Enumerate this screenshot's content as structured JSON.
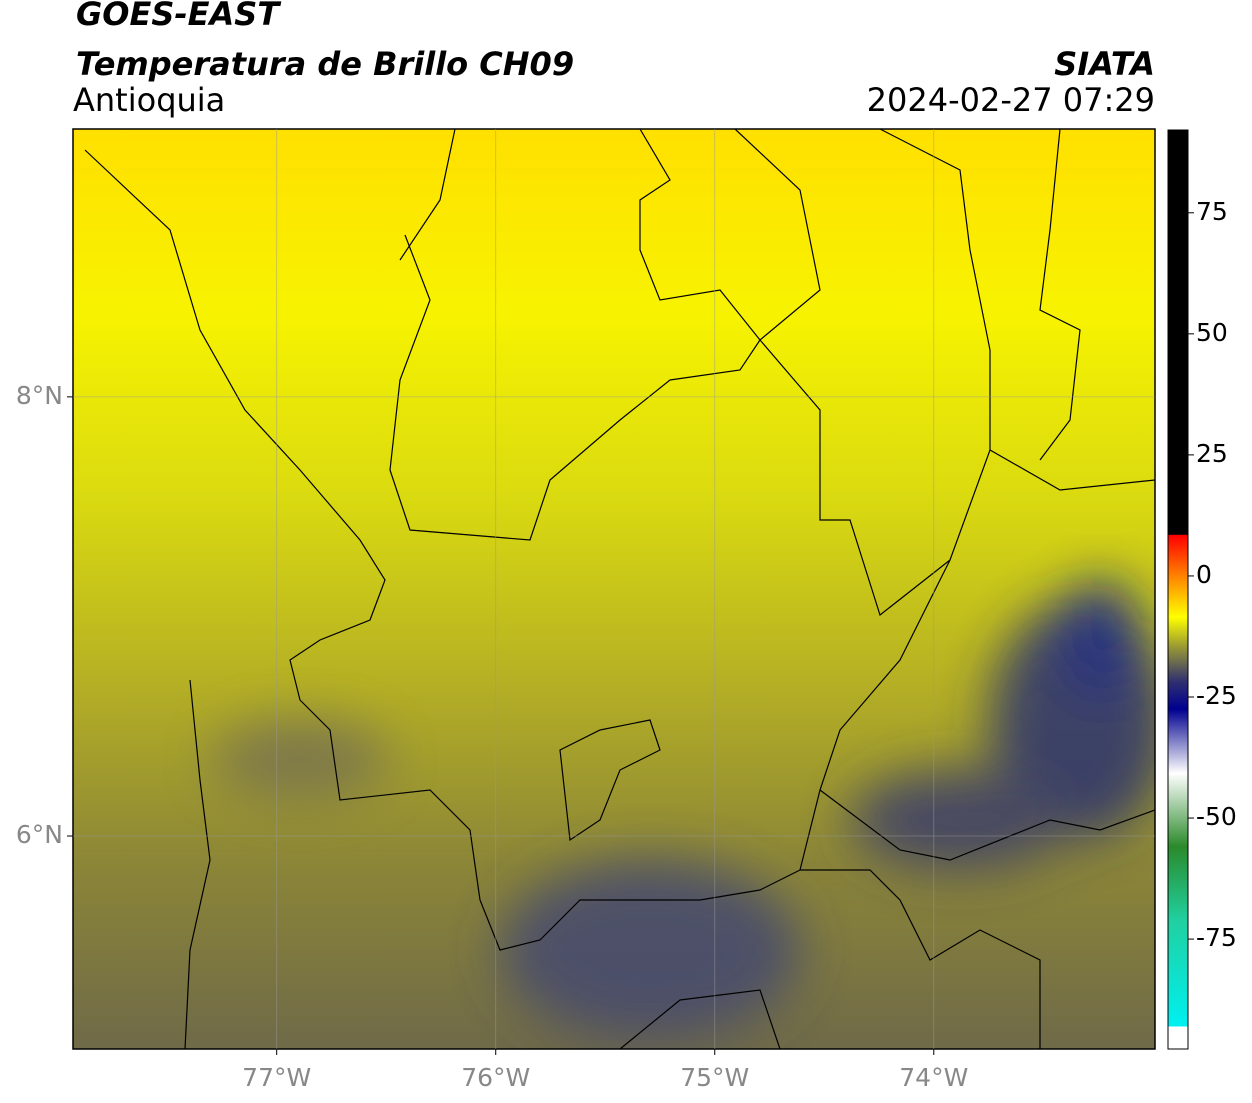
{
  "header": {
    "title": "GOES-EAST",
    "subtitle": "Temperatura de Brillo CH09",
    "region": "Antioquia",
    "source": "SIATA",
    "datetime": "2024-02-27 07:29"
  },
  "map": {
    "xlim": [
      -77.93,
      -72.99
    ],
    "ylim": [
      5.03,
      9.22
    ],
    "xticks": [
      {
        "value": -77,
        "label": "77°W"
      },
      {
        "value": -76,
        "label": "76°W"
      },
      {
        "value": -75,
        "label": "75°W"
      },
      {
        "value": -74,
        "label": "74°W"
      }
    ],
    "yticks": [
      {
        "value": 8,
        "label": "8°N"
      },
      {
        "value": 6,
        "label": "6°N"
      }
    ]
  },
  "colorbar": {
    "clim": [
      -97.7,
      92.1
    ],
    "ticks": [
      75,
      50,
      25,
      0,
      -25,
      -50,
      -75
    ]
  }
}
